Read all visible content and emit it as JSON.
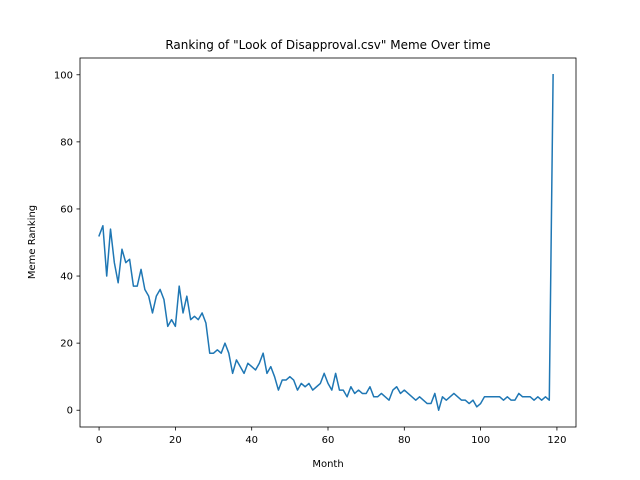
{
  "chart_data": {
    "type": "line",
    "title": "Ranking of \"Look of Disapproval.csv\" Meme Over time",
    "xlabel": "Month",
    "ylabel": "Meme Ranking",
    "xlim": [
      -5,
      125
    ],
    "ylim": [
      -5,
      105
    ],
    "xticks": [
      0,
      20,
      40,
      60,
      80,
      100,
      120
    ],
    "yticks": [
      0,
      20,
      40,
      60,
      80,
      100
    ],
    "grid": false,
    "series": [
      {
        "color": "#1f77b4",
        "values": [
          52,
          55,
          40,
          54,
          44,
          38,
          48,
          44,
          45,
          37,
          37,
          42,
          36,
          34,
          29,
          34,
          36,
          33,
          25,
          27,
          25,
          37,
          29,
          34,
          27,
          28,
          27,
          29,
          26,
          17,
          17,
          18,
          17,
          20,
          17,
          11,
          15,
          13,
          11,
          14,
          13,
          12,
          14,
          17,
          11,
          13,
          10,
          6,
          9,
          9,
          10,
          9,
          6,
          8,
          7,
          8,
          6,
          7,
          8,
          11,
          8,
          6,
          11,
          6,
          6,
          4,
          7,
          5,
          6,
          5,
          5,
          7,
          4,
          4,
          5,
          4,
          3,
          6,
          7,
          5,
          6,
          5,
          4,
          3,
          4,
          3,
          2,
          2,
          5,
          0,
          4,
          3,
          4,
          5,
          4,
          3,
          3,
          2,
          3,
          1,
          2,
          4,
          4,
          4,
          4,
          4,
          3,
          4,
          3,
          3,
          5,
          4,
          4,
          4,
          3,
          4,
          3,
          4,
          3,
          100
        ]
      }
    ]
  }
}
